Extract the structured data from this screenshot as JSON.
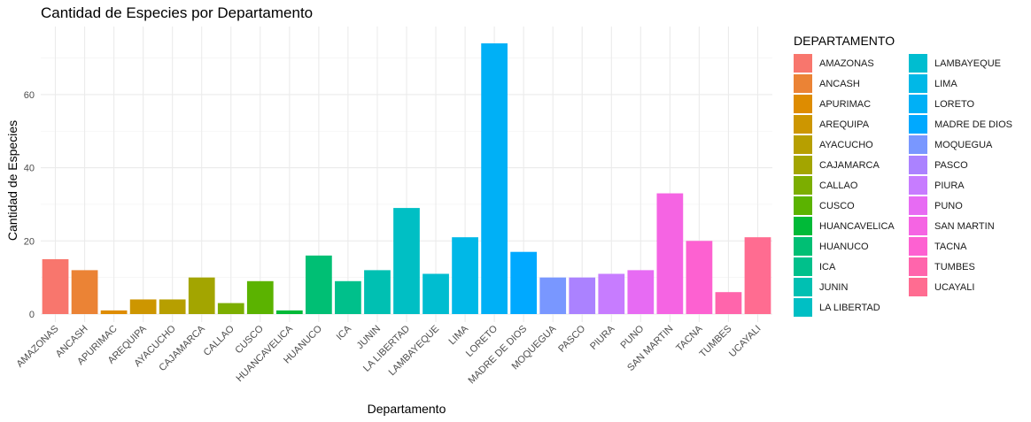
{
  "chart_data": {
    "type": "bar",
    "title": "Cantidad de Especies por Departamento",
    "xlabel": "Departamento",
    "ylabel": "Cantidad de Especies",
    "ylim": [
      0,
      76
    ],
    "yticks": [
      0,
      20,
      40,
      60
    ],
    "grid": true,
    "legend_title": "DEPARTAMENTO",
    "legend_position": "right",
    "categories": [
      "AMAZONAS",
      "ANCASH",
      "APURIMAC",
      "AREQUIPA",
      "AYACUCHO",
      "CAJAMARCA",
      "CALLAO",
      "CUSCO",
      "HUANCAVELICA",
      "HUANUCO",
      "ICA",
      "JUNIN",
      "LA LIBERTAD",
      "LAMBAYEQUE",
      "LIMA",
      "LORETO",
      "MADRE DE DIOS",
      "MOQUEGUA",
      "PASCO",
      "PIURA",
      "PUNO",
      "SAN MARTIN",
      "TACNA",
      "TUMBES",
      "UCAYALI"
    ],
    "values": [
      15,
      12,
      1,
      4,
      4,
      10,
      3,
      9,
      1,
      16,
      9,
      12,
      29,
      11,
      21,
      74,
      17,
      10,
      10,
      11,
      12,
      33,
      20,
      6,
      21
    ],
    "colors": [
      "#F8766D",
      "#EB8335",
      "#DE8C00",
      "#CD9600",
      "#B79F00",
      "#A3A500",
      "#7CAE00",
      "#5BB300",
      "#00BA38",
      "#00BF74",
      "#00C08B",
      "#00C0B2",
      "#00BFC4",
      "#00BDD0",
      "#00B8E7",
      "#00B0F6",
      "#00A9FF",
      "#7997FF",
      "#AB82FF",
      "#C77CFF",
      "#E76BF3",
      "#F564E3",
      "#FD61D1",
      "#FF65AC",
      "#FF6C91"
    ]
  }
}
